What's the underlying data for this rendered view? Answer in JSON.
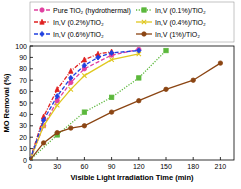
{
  "chart_data": {
    "type": "line",
    "x_label": "Visible Light Irradiation Time (min)",
    "y_label": "MO Removal (%)",
    "xlim": [
      0,
      225
    ],
    "xticks": [
      0,
      30,
      60,
      90,
      120,
      150,
      180,
      210
    ],
    "ylim": [
      0,
      100
    ],
    "yticks": [
      0,
      10,
      20,
      30,
      40,
      50,
      60,
      70,
      80,
      90,
      100
    ],
    "legend": "top",
    "series": [
      {
        "name": "Pure TiO₂ (hydrothermal)",
        "color": "#e040a0",
        "marker": "circle",
        "line_style": "dashed",
        "x": [
          0,
          15,
          30,
          45,
          60,
          90,
          120
        ],
        "values": [
          0,
          30,
          52,
          68,
          80,
          92,
          97
        ]
      },
      {
        "name": "In,V (0.1%)/TiO₂",
        "color": "#5cb83c",
        "marker": "square",
        "line_style": "dotted",
        "x": [
          0,
          30,
          60,
          90,
          120,
          150
        ],
        "values": [
          0,
          22,
          42,
          55,
          72,
          96
        ]
      },
      {
        "name": "In,V (0.2%)/TiO₂",
        "color": "#e02020",
        "marker": "triangle",
        "line_style": "dashdot",
        "x": [
          0,
          15,
          30,
          45,
          60,
          75,
          90
        ],
        "values": [
          0,
          38,
          62,
          78,
          88,
          93,
          95
        ]
      },
      {
        "name": "In,V (0.4%)/TiO₂",
        "color": "#e0c820",
        "marker": "cross",
        "line_style": "solid",
        "x": [
          0,
          15,
          30,
          45,
          60,
          90,
          120
        ],
        "values": [
          0,
          30,
          48,
          62,
          74,
          88,
          93
        ]
      },
      {
        "name": "In,V (0.6%)/TiO₂",
        "color": "#2040e0",
        "marker": "diamond",
        "line_style": "dashed",
        "x": [
          0,
          15,
          30,
          45,
          60,
          75,
          90,
          120
        ],
        "values": [
          0,
          35,
          56,
          72,
          83,
          90,
          94,
          96
        ]
      },
      {
        "name": "In,V (1%)/TiO₂",
        "color": "#8b4513",
        "marker": "circle",
        "line_style": "solid",
        "x": [
          0,
          15,
          30,
          45,
          60,
          90,
          120,
          150,
          180,
          210
        ],
        "values": [
          0,
          15,
          24,
          28,
          30,
          42,
          52,
          62,
          70,
          85
        ]
      }
    ]
  }
}
